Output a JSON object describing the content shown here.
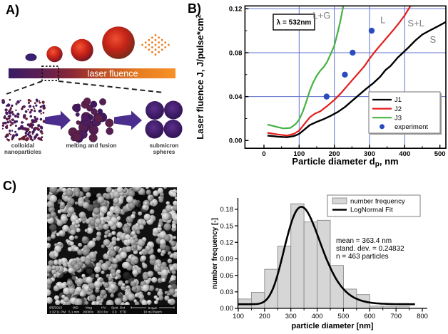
{
  "figure": {
    "panel_a": {
      "label": "A)",
      "gradient_bar_label": "laser fluence",
      "stage_labels": {
        "stage1_line1": "colloidal",
        "stage1_line2": "nanoparticles",
        "stage2": "melting and fusion",
        "stage3_line1": "submicron",
        "stage3_line2": "spheres"
      },
      "bar_colors": [
        "#3a1b66",
        "#5e1f50",
        "#8c2836",
        "#bb4a22",
        "#e67d22",
        "#f79226"
      ]
    },
    "panel_b": {
      "label": "B)"
    },
    "panel_c": {
      "label": "C)",
      "sem_info": {
        "date": "6/5/2013",
        "time": "1:32:11 PM",
        "wd_label": "WD",
        "wd": "5.1 mm",
        "mag_label": "Mag",
        "mag": "20000x",
        "hv_label": "HV",
        "hv": "30.0 kV",
        "spot_label": "Spot",
        "spot": "3.0",
        "det_label": "Det",
        "det": "ETD",
        "scale": "5.0µm",
        "batch": "10 mJ Batch"
      }
    }
  },
  "chart_data": [
    {
      "panel": "B",
      "type": "line",
      "xlabel": {
        "main": "Particle diameter  d",
        "sub": "p",
        "tail": ", nm"
      },
      "ylabel": {
        "main": "Laser fluence  J, J/pulse*cm",
        "sup": "2"
      },
      "xlim": [
        0,
        500
      ],
      "ylim": [
        0,
        0.12
      ],
      "x_ticks": [
        0,
        100,
        200,
        300,
        400,
        500
      ],
      "y_ticks": [
        0,
        0.04,
        0.08,
        0.12
      ],
      "grid": true,
      "grid_color": "#6272cc",
      "annotation_box": "λ = 532nm",
      "region_labels": [
        {
          "text": "L+G",
          "x": 164,
          "y": 0.111
        },
        {
          "text": "L",
          "x": 338,
          "y": 0.107
        },
        {
          "text": "S+L",
          "x": 432,
          "y": 0.104
        },
        {
          "text": "S",
          "x": 480,
          "y": 0.089
        }
      ],
      "legend_position": "bottom-right",
      "series": [
        {
          "name": "J1",
          "type": "line",
          "color": "#000000",
          "points": [
            [
              10,
              0.0045
            ],
            [
              40,
              0.0035
            ],
            [
              65,
              0.003
            ],
            [
              85,
              0.004
            ],
            [
              100,
              0.006
            ],
            [
              115,
              0.01
            ],
            [
              130,
              0.014
            ],
            [
              150,
              0.017
            ],
            [
              170,
              0.0195
            ],
            [
              190,
              0.0225
            ],
            [
              210,
              0.026
            ],
            [
              230,
              0.0305
            ],
            [
              250,
              0.036
            ],
            [
              270,
              0.0415
            ],
            [
              290,
              0.047
            ],
            [
              310,
              0.052
            ],
            [
              330,
              0.058
            ],
            [
              345,
              0.064
            ],
            [
              360,
              0.068
            ],
            [
              380,
              0.0755
            ],
            [
              395,
              0.08
            ],
            [
              410,
              0.0845
            ],
            [
              430,
              0.091
            ],
            [
              450,
              0.0965
            ],
            [
              470,
              0.1
            ],
            [
              485,
              0.1025
            ],
            [
              500,
              0.105
            ],
            [
              517,
              0.108
            ]
          ]
        },
        {
          "name": "J2",
          "type": "line",
          "color": "#e51c1c",
          "points": [
            [
              10,
              0.007
            ],
            [
              40,
              0.0055
            ],
            [
              65,
              0.0045
            ],
            [
              85,
              0.006
            ],
            [
              100,
              0.009
            ],
            [
              115,
              0.015
            ],
            [
              130,
              0.021
            ],
            [
              145,
              0.0245
            ],
            [
              160,
              0.0265
            ],
            [
              180,
              0.0315
            ],
            [
              200,
              0.037
            ],
            [
              220,
              0.0435
            ],
            [
              240,
              0.051
            ],
            [
              255,
              0.0565
            ],
            [
              270,
              0.062
            ],
            [
              285,
              0.0675
            ],
            [
              300,
              0.0745
            ],
            [
              313,
              0.08
            ],
            [
              330,
              0.0865
            ],
            [
              350,
              0.094
            ],
            [
              370,
              0.1015
            ],
            [
              385,
              0.1075
            ],
            [
              400,
              0.114
            ],
            [
              418,
              0.1235
            ]
          ]
        },
        {
          "name": "J3",
          "type": "line",
          "color": "#45b243",
          "points": [
            [
              10,
              0.0145
            ],
            [
              35,
              0.0125
            ],
            [
              55,
              0.011
            ],
            [
              75,
              0.0115
            ],
            [
              90,
              0.015
            ],
            [
              100,
              0.019
            ],
            [
              110,
              0.026
            ],
            [
              120,
              0.035
            ],
            [
              130,
              0.045
            ],
            [
              140,
              0.053
            ],
            [
              150,
              0.059
            ],
            [
              160,
              0.0635
            ],
            [
              170,
              0.067
            ],
            [
              180,
              0.072
            ],
            [
              190,
              0.079
            ],
            [
              200,
              0.0865
            ],
            [
              210,
              0.099
            ],
            [
              218,
              0.11
            ],
            [
              226,
              0.1235
            ]
          ]
        },
        {
          "name": "experiment",
          "type": "scatter",
          "color": "#2a4cc0",
          "points": [
            [
              178,
              0.04
            ],
            [
              230,
              0.06
            ],
            [
              252,
              0.08
            ],
            [
              306,
              0.1
            ]
          ]
        }
      ]
    },
    {
      "panel": "C",
      "type": "histogram+line",
      "xlabel": "particle diameter [nm]",
      "ylabel": "number frequency [-]",
      "xlim": [
        100,
        800
      ],
      "ylim": [
        0,
        0.2
      ],
      "x_ticks": [
        100,
        200,
        300,
        400,
        500,
        600,
        700,
        800
      ],
      "y_ticks": [
        0,
        0.03,
        0.06,
        0.09,
        0.12,
        0.15,
        0.18
      ],
      "legend": [
        {
          "label": "number frequency",
          "type": "bar",
          "color": "#d6d6d6"
        },
        {
          "label": "LogNormal Fit",
          "type": "line",
          "color": "#000000"
        }
      ],
      "stats": [
        "mean = 363.4 nm",
        "stand. dev. = 0.24832",
        "n = 463 particles"
      ],
      "bins": {
        "start": 100,
        "width": 50,
        "values": [
          0.017,
          0.029,
          0.071,
          0.113,
          0.19,
          0.157,
          0.16,
          0.078,
          0.035,
          0.025,
          0.004,
          0.004,
          0.004
        ]
      },
      "fit": {
        "type": "lognormal",
        "center": 340,
        "sigma": 0.2,
        "amplitude": 0.177,
        "baseline": 0.0075
      }
    }
  ]
}
